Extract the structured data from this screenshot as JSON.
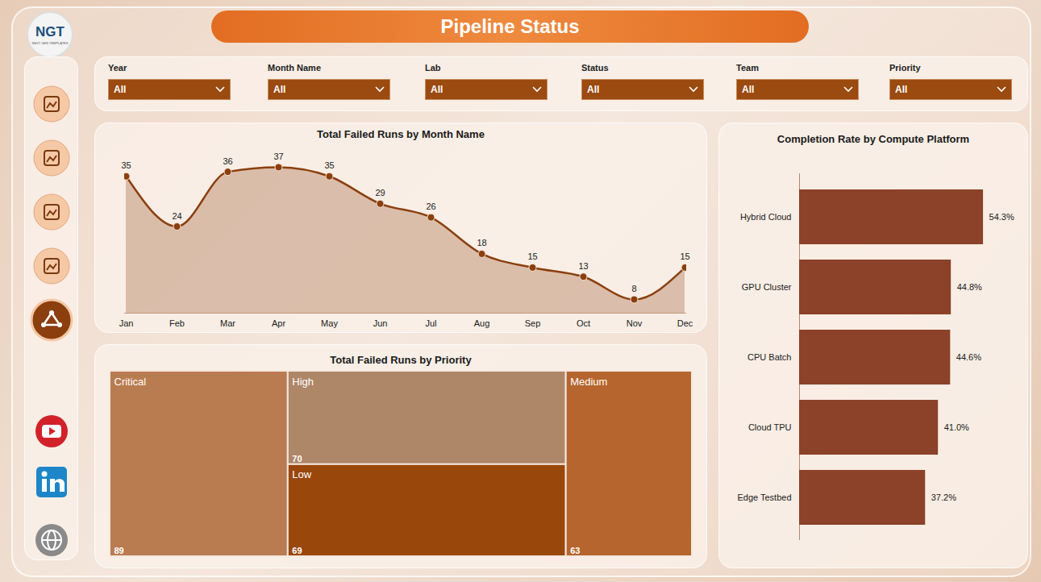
{
  "header": {
    "title": "Pipeline Status",
    "logo": "NGT",
    "logo_tagline": "NEXT GEN TEMPLATES"
  },
  "filters": [
    {
      "label": "Year",
      "value": "All"
    },
    {
      "label": "Month Name",
      "value": "All"
    },
    {
      "label": "Lab",
      "value": "All"
    },
    {
      "label": "Status",
      "value": "All"
    },
    {
      "label": "Team",
      "value": "All"
    },
    {
      "label": "Priority",
      "value": "All"
    }
  ],
  "chart_data": [
    {
      "type": "area",
      "title": "Total Failed Runs by Month Name",
      "categories": [
        "Jan",
        "Feb",
        "Mar",
        "Apr",
        "May",
        "Jun",
        "Jul",
        "Aug",
        "Sep",
        "Oct",
        "Nov",
        "Dec"
      ],
      "values": [
        35,
        24,
        36,
        37,
        35,
        29,
        26,
        18,
        15,
        13,
        8,
        15
      ],
      "color": "#8b3f0e",
      "marker": "circle",
      "ylim": [
        5,
        40
      ],
      "tick_labels": "x",
      "data_labels": true
    },
    {
      "type": "treemap",
      "title": "Total Failed Runs by Priority",
      "categories": [
        "Critical",
        "High",
        "Low",
        "Medium"
      ],
      "values": [
        89,
        70,
        69,
        63
      ],
      "colors": [
        "#b97b50",
        "#ae8668",
        "#9a470c",
        "#b5652d"
      ],
      "data_labels": true
    },
    {
      "type": "bar",
      "orientation": "horizontal",
      "title": "Completion Rate by Compute Platform",
      "categories": [
        "Hybrid Cloud",
        "GPU Cluster",
        "CPU Batch",
        "Cloud TPU",
        "Edge Testbed"
      ],
      "values": [
        54.3,
        44.8,
        44.6,
        41.0,
        37.2
      ],
      "value_labels": [
        "54.3%",
        "44.8%",
        "44.6%",
        "41.0%",
        "37.2%"
      ],
      "color": "#8b4228",
      "xlim": [
        0,
        60
      ],
      "tick_labels": "y",
      "data_labels": true
    }
  ]
}
